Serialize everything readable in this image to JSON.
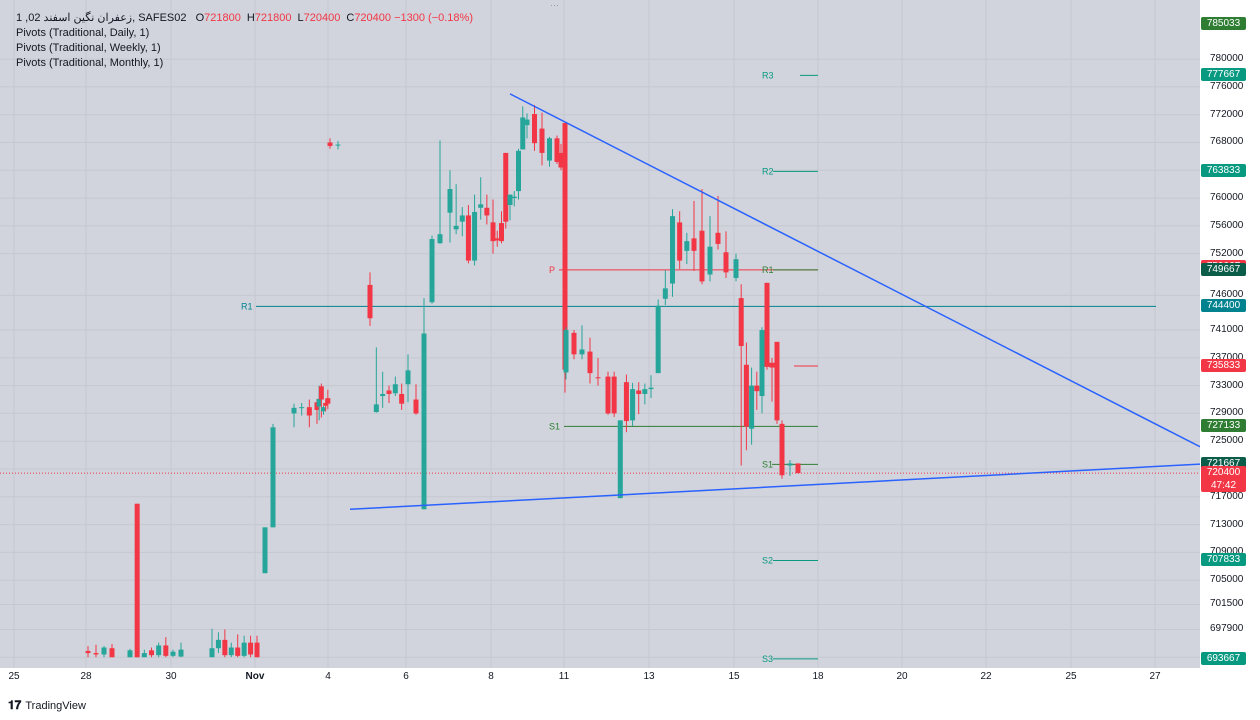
{
  "legend": {
    "symbol": "زعفران نگین اسفند 02, 1, SAFES02",
    "ohlc": [
      {
        "label": "O",
        "value": "721800"
      },
      {
        "label": "H",
        "value": "721800"
      },
      {
        "label": "L",
        "value": "720400"
      },
      {
        "label": "C",
        "value": "720400"
      }
    ],
    "change": "−1300 (−0.18%)",
    "indicators": [
      "Pivots (Traditional, Daily, 1)",
      "Pivots (Traditional, Weekly, 1)",
      "Pivots (Traditional, Monthly, 1)"
    ]
  },
  "footer": {
    "logo_text": "TradingView"
  },
  "colors": {
    "up": "#26a69a",
    "down": "#f23645",
    "trendline": "#2962ff",
    "pivot_daily": "#f23645",
    "pivot_weekly": "#2e7d32",
    "pivot_monthly": "#089981",
    "pivot_teal": "#00838f"
  },
  "chart_data": {
    "type": "candlestick",
    "ylim": [
      693000,
      787000
    ],
    "y_ticks": [
      "780000",
      "776000",
      "772000",
      "768000",
      "764000",
      "760000",
      "756000",
      "752000",
      "746000",
      "741000",
      "737000",
      "733000",
      "729000",
      "725000",
      "721000",
      "717000",
      "713000",
      "709000",
      "705000",
      "701500",
      "697900",
      "693900"
    ],
    "x_ticks": [
      "25",
      "28",
      "30",
      "Nov",
      "4",
      "6",
      "8",
      "11",
      "13",
      "15",
      "18",
      "20",
      "22",
      "25",
      "27"
    ],
    "price_badges": [
      {
        "value": "785033",
        "color": "#2e7d32"
      },
      {
        "value": "777667",
        "color": "#089981"
      },
      {
        "value": "763833",
        "color": "#089981"
      },
      {
        "value": "750067",
        "color": "#f23645"
      },
      {
        "value": "749667",
        "color": "#0b5d4a"
      },
      {
        "value": "744400",
        "color": "#00838f"
      },
      {
        "value": "735833",
        "color": "#f23645"
      },
      {
        "value": "727133",
        "color": "#2e7d32"
      },
      {
        "value": "721667",
        "color": "#0b5d4a"
      },
      {
        "value": "720400",
        "color": "#f23645",
        "sub": "47:42"
      },
      {
        "value": "707833",
        "color": "#089981"
      },
      {
        "value": "693667",
        "color": "#089981"
      }
    ],
    "pivot_labels": [
      {
        "label": "R3",
        "value": 777667
      },
      {
        "label": "R2",
        "value": 763833
      },
      {
        "label": "P",
        "value": 749667
      },
      {
        "label": "R1",
        "value": 749667
      },
      {
        "label": "R1",
        "value": 744400
      },
      {
        "label": "S1",
        "value": 727133
      },
      {
        "label": "S1",
        "value": 721667
      },
      {
        "label": "S2",
        "value": 707833
      },
      {
        "label": "S3",
        "value": 693667
      }
    ],
    "trendlines": [
      {
        "from": [
          "Nov 8",
          775000
        ],
        "to": [
          "Nov 27",
          724200
        ]
      },
      {
        "from": [
          "Nov 5",
          715200
        ],
        "to": [
          "Nov 27",
          721700
        ]
      }
    ],
    "candles": [
      {
        "x": "Oct 28",
        "o": 694800,
        "h": 695500,
        "l": 693900,
        "c": 694500
      },
      {
        "x": "Oct 28",
        "o": 694500,
        "h": 695700,
        "l": 693900,
        "c": 694300
      },
      {
        "x": "Oct 28",
        "o": 694300,
        "h": 695500,
        "l": 693900,
        "c": 695300
      },
      {
        "x": "Oct 28",
        "o": 695200,
        "h": 695800,
        "l": 693900,
        "c": 693900
      },
      {
        "x": "Oct 29",
        "o": 693900,
        "h": 695100,
        "l": 693900,
        "c": 694900
      },
      {
        "x": "Oct 29",
        "o": 716000,
        "h": 716000,
        "l": 693900,
        "c": 693900
      },
      {
        "x": "Oct 29",
        "o": 693900,
        "h": 695000,
        "l": 693900,
        "c": 694500
      },
      {
        "x": "Oct 29",
        "o": 694900,
        "h": 695300,
        "l": 693900,
        "c": 694200
      },
      {
        "x": "Oct 29",
        "o": 694200,
        "h": 696000,
        "l": 693900,
        "c": 695600
      },
      {
        "x": "Oct 29",
        "o": 695600,
        "h": 696800,
        "l": 693900,
        "c": 694100
      },
      {
        "x": "Oct 30",
        "o": 694100,
        "h": 695000,
        "l": 693900,
        "c": 694700
      },
      {
        "x": "Oct 30",
        "o": 694000,
        "h": 696000,
        "l": 693900,
        "c": 695000
      },
      {
        "x": "Oct 31",
        "o": 693900,
        "h": 698000,
        "l": 693900,
        "c": 695200
      },
      {
        "x": "Oct 31",
        "o": 695200,
        "h": 697500,
        "l": 694500,
        "c": 696400
      },
      {
        "x": "Oct 31",
        "o": 696400,
        "h": 697900,
        "l": 693900,
        "c": 694200
      },
      {
        "x": "Oct 31",
        "o": 694200,
        "h": 696000,
        "l": 693900,
        "c": 695300
      },
      {
        "x": "Oct 31",
        "o": 695300,
        "h": 697200,
        "l": 693900,
        "c": 694100
      },
      {
        "x": "Oct 31",
        "o": 694100,
        "h": 697000,
        "l": 693900,
        "c": 696000
      },
      {
        "x": "Oct 31",
        "o": 696000,
        "h": 697000,
        "l": 693900,
        "c": 694300
      },
      {
        "x": "Nov 1",
        "o": 696000,
        "h": 697000,
        "l": 693900,
        "c": 693900
      },
      {
        "x": "Nov 1",
        "o": 706000,
        "h": 712600,
        "l": 706000,
        "c": 712600
      },
      {
        "x": "Nov 1",
        "o": 712600,
        "h": 727500,
        "l": 712600,
        "c": 727000
      },
      {
        "x": "Nov 2",
        "o": 729000,
        "h": 730400,
        "l": 727000,
        "c": 729800
      },
      {
        "x": "Nov 2",
        "o": 729900,
        "h": 730500,
        "l": 728700,
        "c": 729900
      },
      {
        "x": "Nov 2",
        "o": 729900,
        "h": 731000,
        "l": 727000,
        "c": 728700
      },
      {
        "x": "Nov 3",
        "o": 730600,
        "h": 731100,
        "l": 727500,
        "c": 729500
      },
      {
        "x": "Nov 3",
        "o": 730000,
        "h": 733000,
        "l": 728000,
        "c": 731100
      },
      {
        "x": "Nov 3",
        "o": 732900,
        "h": 733300,
        "l": 728400,
        "c": 731000
      },
      {
        "x": "Nov 3",
        "o": 729300,
        "h": 730100,
        "l": 728800,
        "c": 729900
      },
      {
        "x": "Nov 3",
        "o": 730500,
        "h": 731000,
        "l": 729300,
        "c": 730100
      },
      {
        "x": "Nov 3",
        "o": 731200,
        "h": 732400,
        "l": 729600,
        "c": 730400
      },
      {
        "x": "Nov 4",
        "o": 768000,
        "h": 768600,
        "l": 767100,
        "c": 767500
      },
      {
        "x": "Nov 4",
        "o": 767700,
        "h": 768200,
        "l": 767000,
        "c": 767700
      },
      {
        "x": "Nov 5",
        "o": 747500,
        "h": 749300,
        "l": 741600,
        "c": 742700
      },
      {
        "x": "Nov 5",
        "o": 729200,
        "h": 738500,
        "l": 729100,
        "c": 730300
      },
      {
        "x": "Nov 5",
        "o": 731500,
        "h": 735000,
        "l": 729800,
        "c": 731800
      },
      {
        "x": "Nov 5",
        "o": 732300,
        "h": 733000,
        "l": 730500,
        "c": 731800
      },
      {
        "x": "Nov 5",
        "o": 731900,
        "h": 734300,
        "l": 731500,
        "c": 733200
      },
      {
        "x": "Nov 5",
        "o": 731800,
        "h": 733300,
        "l": 729500,
        "c": 730400
      },
      {
        "x": "Nov 6",
        "o": 733200,
        "h": 737500,
        "l": 730600,
        "c": 735200
      },
      {
        "x": "Nov 6",
        "o": 731000,
        "h": 733200,
        "l": 728800,
        "c": 729000
      },
      {
        "x": "Nov 6",
        "o": 715200,
        "h": 745600,
        "l": 715200,
        "c": 740500
      },
      {
        "x": "Nov 6",
        "o": 745000,
        "h": 754600,
        "l": 744800,
        "c": 754100
      },
      {
        "x": "Nov 6",
        "o": 753500,
        "h": 768300,
        "l": 753400,
        "c": 754800
      },
      {
        "x": "Nov 7",
        "o": 757900,
        "h": 764000,
        "l": 753600,
        "c": 761300
      },
      {
        "x": "Nov 7",
        "o": 755500,
        "h": 762000,
        "l": 754800,
        "c": 756000
      },
      {
        "x": "Nov 7",
        "o": 756600,
        "h": 758700,
        "l": 754500,
        "c": 757500
      },
      {
        "x": "Nov 7",
        "o": 757500,
        "h": 759000,
        "l": 750600,
        "c": 751000
      },
      {
        "x": "Nov 7",
        "o": 751000,
        "h": 760500,
        "l": 750300,
        "c": 758000
      },
      {
        "x": "Nov 7",
        "o": 758600,
        "h": 763000,
        "l": 756900,
        "c": 759100
      },
      {
        "x": "Nov 7",
        "o": 758600,
        "h": 760500,
        "l": 756200,
        "c": 757500
      },
      {
        "x": "Nov 8",
        "o": 756500,
        "h": 759800,
        "l": 752000,
        "c": 753800
      },
      {
        "x": "Nov 8",
        "o": 754200,
        "h": 755300,
        "l": 753000,
        "c": 753900
      },
      {
        "x": "Nov 8",
        "o": 756400,
        "h": 758100,
        "l": 753500,
        "c": 753800
      },
      {
        "x": "Nov 8",
        "o": 766500,
        "h": 766500,
        "l": 755600,
        "c": 756600
      },
      {
        "x": "Nov 8",
        "o": 759000,
        "h": 760500,
        "l": 756800,
        "c": 760500
      },
      {
        "x": "Nov 8",
        "o": 760000,
        "h": 761000,
        "l": 758800,
        "c": 760200
      },
      {
        "x": "Nov 8",
        "o": 761000,
        "h": 767100,
        "l": 759800,
        "c": 766800
      },
      {
        "x": "Nov 8",
        "o": 767000,
        "h": 773200,
        "l": 767000,
        "c": 771600
      },
      {
        "x": "Nov 9",
        "o": 770500,
        "h": 772200,
        "l": 768600,
        "c": 771300
      },
      {
        "x": "Nov 9",
        "o": 772100,
        "h": 773400,
        "l": 766800,
        "c": 767900
      },
      {
        "x": "Nov 9",
        "o": 770000,
        "h": 772300,
        "l": 764700,
        "c": 766500
      },
      {
        "x": "Nov 9",
        "o": 765400,
        "h": 768800,
        "l": 764500,
        "c": 768600
      },
      {
        "x": "Nov 10",
        "o": 768600,
        "h": 769000,
        "l": 764900,
        "c": 765200
      },
      {
        "x": "Nov 10",
        "o": 766500,
        "h": 767800,
        "l": 764000,
        "c": 764400
      },
      {
        "x": "Nov 10",
        "o": 770800,
        "h": 770800,
        "l": 732000,
        "c": 735300
      },
      {
        "x": "Nov 11",
        "o": 734900,
        "h": 741400,
        "l": 733900,
        "c": 741000
      },
      {
        "x": "Nov 11",
        "o": 740600,
        "h": 741000,
        "l": 736800,
        "c": 737500
      },
      {
        "x": "Nov 11",
        "o": 737500,
        "h": 741700,
        "l": 736800,
        "c": 738200
      },
      {
        "x": "Nov 11",
        "o": 737900,
        "h": 739900,
        "l": 733300,
        "c": 734800
      },
      {
        "x": "Nov 11",
        "o": 734200,
        "h": 737000,
        "l": 733000,
        "c": 734100
      },
      {
        "x": "Nov 12",
        "o": 734300,
        "h": 735000,
        "l": 728800,
        "c": 729000
      },
      {
        "x": "Nov 12",
        "o": 734300,
        "h": 735000,
        "l": 728500,
        "c": 729000
      },
      {
        "x": "Nov 12",
        "o": 716800,
        "h": 728000,
        "l": 716800,
        "c": 728000
      },
      {
        "x": "Nov 12",
        "o": 733500,
        "h": 734600,
        "l": 726300,
        "c": 727900
      },
      {
        "x": "Nov 12",
        "o": 728000,
        "h": 733400,
        "l": 727200,
        "c": 732500
      },
      {
        "x": "Nov 12",
        "o": 732300,
        "h": 733500,
        "l": 728900,
        "c": 731800
      },
      {
        "x": "Nov 12",
        "o": 731800,
        "h": 733300,
        "l": 730300,
        "c": 732500
      },
      {
        "x": "Nov 13",
        "o": 732500,
        "h": 734500,
        "l": 731200,
        "c": 732700
      },
      {
        "x": "Nov 13",
        "o": 734800,
        "h": 745400,
        "l": 734800,
        "c": 744500
      },
      {
        "x": "Nov 13",
        "o": 745500,
        "h": 749600,
        "l": 744600,
        "c": 747000
      },
      {
        "x": "Nov 13",
        "o": 747700,
        "h": 758400,
        "l": 745800,
        "c": 757400
      },
      {
        "x": "Nov 13",
        "o": 756500,
        "h": 758100,
        "l": 749800,
        "c": 751000
      },
      {
        "x": "Nov 13",
        "o": 752400,
        "h": 755000,
        "l": 750500,
        "c": 753800
      },
      {
        "x": "Nov 14",
        "o": 754200,
        "h": 759600,
        "l": 749500,
        "c": 752400
      },
      {
        "x": "Nov 14",
        "o": 755300,
        "h": 761300,
        "l": 747600,
        "c": 748000
      },
      {
        "x": "Nov 14",
        "o": 749000,
        "h": 757400,
        "l": 748000,
        "c": 753000
      },
      {
        "x": "Nov 14",
        "o": 755000,
        "h": 760300,
        "l": 752600,
        "c": 753400
      },
      {
        "x": "Nov 14",
        "o": 752200,
        "h": 755200,
        "l": 748500,
        "c": 749300
      },
      {
        "x": "Nov 15",
        "o": 748500,
        "h": 752000,
        "l": 748000,
        "c": 751200
      },
      {
        "x": "Nov 15",
        "o": 745600,
        "h": 747600,
        "l": 721500,
        "c": 738700
      },
      {
        "x": "Nov 15",
        "o": 736000,
        "h": 739200,
        "l": 723700,
        "c": 727100
      },
      {
        "x": "Nov 15",
        "o": 726800,
        "h": 735600,
        "l": 724500,
        "c": 733000
      },
      {
        "x": "Nov 15",
        "o": 733000,
        "h": 735000,
        "l": 729500,
        "c": 732200
      },
      {
        "x": "Nov 16",
        "o": 731500,
        "h": 741400,
        "l": 729000,
        "c": 741000
      },
      {
        "x": "Nov 16",
        "o": 747800,
        "h": 747800,
        "l": 735300,
        "c": 735700
      },
      {
        "x": "Nov 16",
        "o": 736300,
        "h": 737000,
        "l": 730700,
        "c": 735600
      },
      {
        "x": "Nov 16",
        "o": 739300,
        "h": 739300,
        "l": 727500,
        "c": 728000
      },
      {
        "x": "Nov 17",
        "o": 727500,
        "h": 728000,
        "l": 719600,
        "c": 720100
      },
      {
        "x": "Nov 17",
        "o": 721500,
        "h": 722300,
        "l": 720000,
        "c": 721800
      },
      {
        "x": "Nov 17",
        "o": 721800,
        "h": 721800,
        "l": 720400,
        "c": 720400
      }
    ]
  }
}
